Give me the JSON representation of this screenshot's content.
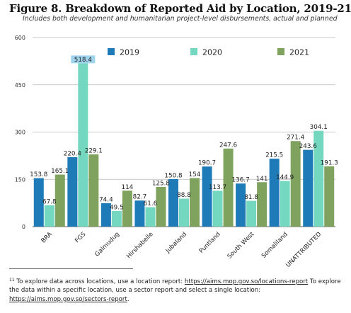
{
  "title": "Figure 8. Breakdown of Reported Aid by Location, 2019-21",
  "title_footnote_ref": "11",
  "subtitle": "Includes both development and humanitarian project-level disbursements, actual and planned",
  "chart_data": {
    "type": "bar",
    "categories": [
      "BRA",
      "FGS",
      "Galmudug",
      "Hirshabelle",
      "Jubaland",
      "Puntland",
      "South West",
      "Somaliland",
      "UNATTRIBUTED"
    ],
    "series": [
      {
        "name": "2019",
        "color": "#1f7ab8",
        "values": [
          153.8,
          220.4,
          74.4,
          82.7,
          150.8,
          190.7,
          136.7,
          215.5,
          243.6
        ]
      },
      {
        "name": "2020",
        "color": "#74d8c0",
        "values": [
          67.8,
          518.4,
          49.5,
          61.6,
          88.8,
          113.7,
          81.8,
          144.9,
          304.1
        ]
      },
      {
        "name": "2021",
        "color": "#7fa35e",
        "values": [
          165.1,
          229.1,
          114,
          125.8,
          154,
          247.6,
          141,
          271.4,
          191.3
        ]
      }
    ],
    "data_labels": [
      [
        "153.8",
        "220.4",
        "74.4",
        "82.7",
        "150.8",
        "190.7",
        "136.7",
        "215.5",
        "243.6"
      ],
      [
        "67.8",
        "518.4",
        "49.5",
        "61.6",
        "88.8",
        "113.7",
        "81.8",
        "144.9",
        "304.1"
      ],
      [
        "165.1",
        "229.1",
        "114",
        "125.8",
        "154",
        "247.6",
        "141",
        "271.4",
        "191.3"
      ]
    ],
    "yticks": [
      "0",
      "150",
      "300",
      "450",
      "600"
    ],
    "ylim": [
      0,
      600
    ],
    "grid": true,
    "legend_position": "top"
  },
  "footnote": {
    "number": "11",
    "text_1": "To explore data across locations, use a location report:",
    "link_1": "https://aims.mop.gov.so/locations-report",
    "text_2": "To explore the data within a specific location, use a sector report and select a single location:",
    "link_2": "https://aims.mop.gov.so/sectors-report",
    "text_3": "."
  }
}
